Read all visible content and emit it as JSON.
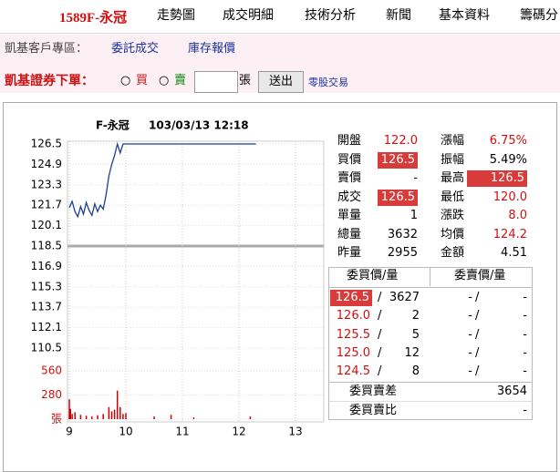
{
  "nav": {
    "stock": "1589F-永冠",
    "tabs": [
      "走勢圖",
      "成交明細",
      "技術分析",
      "新聞",
      "基本資料",
      "籌碼分"
    ]
  },
  "client_bar": {
    "label": "凱基客戶專區：",
    "links": [
      "委託成交",
      "庫存報價"
    ]
  },
  "order_bar": {
    "label": "凱基證券下單：",
    "buy": "買",
    "sell": "賣",
    "unit": "張",
    "submit": "送出",
    "odd_lot": "零股交易"
  },
  "chart": {
    "type": "line",
    "title": "F-永冠",
    "timestamp": "103/03/13 12:18",
    "color": "#1c3f94",
    "reference": 118.5,
    "x": [
      9.0,
      9.05,
      9.1,
      9.15,
      9.2,
      9.25,
      9.3,
      9.35,
      9.4,
      9.45,
      9.5,
      9.55,
      9.6,
      9.65,
      9.7,
      9.75,
      9.8,
      9.85,
      9.9,
      9.95,
      10.0,
      12.3
    ],
    "values": [
      121.5,
      122.0,
      121.2,
      120.8,
      121.6,
      121.0,
      121.9,
      121.3,
      120.9,
      121.8,
      121.2,
      121.7,
      121.4,
      122.5,
      124.0,
      124.9,
      125.6,
      126.5,
      125.8,
      126.5,
      126.5,
      126.5
    ],
    "xlim": [
      9,
      13.5
    ],
    "xticks": [
      9,
      10,
      11,
      12,
      13
    ],
    "ylim": [
      110.5,
      126.5
    ],
    "yticks": [
      126.5,
      124.9,
      123.3,
      121.7,
      120.1,
      118.5,
      116.9,
      115.3,
      113.7,
      112.1,
      110.5
    ],
    "volume": {
      "color": "#cc0000",
      "x": [
        9.0,
        9.02,
        9.05,
        9.1,
        9.2,
        9.3,
        9.4,
        9.5,
        9.6,
        9.7,
        9.75,
        9.8,
        9.85,
        9.9,
        9.95,
        10.0,
        10.5,
        10.8,
        11.2,
        12.2
      ],
      "values": [
        230,
        120,
        60,
        80,
        50,
        40,
        30,
        45,
        60,
        140,
        90,
        110,
        330,
        140,
        60,
        70,
        30,
        50,
        20,
        30
      ],
      "ylim": [
        0,
        560
      ],
      "yticks": [
        560,
        280,
        {
          "value": 0,
          "label": "張"
        }
      ]
    }
  },
  "quote": {
    "rows": [
      [
        "開盤",
        "122.0",
        "漲幅",
        "6.75%"
      ],
      [
        "買價",
        "126.5",
        "振幅",
        "5.49%"
      ],
      [
        "賣價",
        "-",
        "最高",
        "126.5"
      ],
      [
        "成交",
        "126.5",
        "最低",
        "120.0"
      ],
      [
        "單量",
        "1",
        "漲跌",
        "8.0"
      ],
      [
        "總量",
        "3632",
        "均價",
        "124.2"
      ],
      [
        "昨量",
        "2955",
        "金額",
        "4.51"
      ]
    ]
  },
  "book": {
    "headers": [
      "委買價/量",
      "委賣價/量"
    ],
    "rows": [
      [
        "126.5",
        "3627",
        "-",
        "-"
      ],
      [
        "126.0",
        "2",
        "-",
        "-"
      ],
      [
        "125.5",
        "5",
        "-",
        "-"
      ],
      [
        "125.0",
        "12",
        "-",
        "-"
      ],
      [
        "124.5",
        "8",
        "-",
        "-"
      ]
    ],
    "summary": [
      [
        "委買賣差",
        "3654"
      ],
      [
        "委買賣比",
        "-"
      ]
    ]
  }
}
